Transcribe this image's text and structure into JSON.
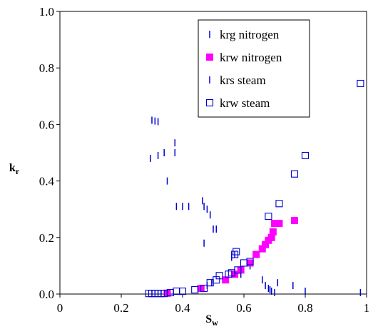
{
  "chart_data": {
    "type": "scatter",
    "title": "",
    "xlabel": "S",
    "xlabel_sub": "w",
    "ylabel": "k",
    "ylabel_sub": "r",
    "xlim": [
      0,
      1
    ],
    "ylim": [
      0,
      1
    ],
    "x_ticks": [
      0,
      0.2,
      0.4,
      0.6,
      0.8,
      1
    ],
    "x_tick_labels": [
      "0",
      "0.2",
      "0.4",
      "0.6",
      "0.8",
      "1"
    ],
    "y_ticks": [
      0,
      0.2,
      0.4,
      0.6,
      0.8,
      1
    ],
    "y_tick_labels": [
      "0.0",
      "0.2",
      "0.4",
      "0.6",
      "0.8",
      "1.0"
    ],
    "grid": false,
    "legend_position": "top-right",
    "series": [
      {
        "name": "krg nitrogen",
        "marker": "dash",
        "color": "#0000cc",
        "points": [
          [
            0.465,
            0.33
          ],
          [
            0.47,
            0.31
          ],
          [
            0.48,
            0.3
          ],
          [
            0.49,
            0.28
          ],
          [
            0.5,
            0.23
          ],
          [
            0.47,
            0.18
          ],
          [
            0.45,
            0.02
          ],
          [
            0.48,
            0.03
          ],
          [
            0.495,
            0.04
          ],
          [
            0.56,
            0.13
          ],
          [
            0.57,
            0.14
          ],
          [
            0.59,
            0.07
          ],
          [
            0.62,
            0.1
          ],
          [
            0.66,
            0.05
          ],
          [
            0.67,
            0.03
          ],
          [
            0.68,
            0.02
          ],
          [
            0.685,
            0.015
          ],
          [
            0.69,
            0.01
          ],
          [
            0.7,
            0.005
          ]
        ]
      },
      {
        "name": "krw nitrogen",
        "marker": "filled-square",
        "color": "#ff00ff",
        "points": [
          [
            0.35,
            0.003
          ],
          [
            0.46,
            0.02
          ],
          [
            0.54,
            0.05
          ],
          [
            0.57,
            0.07
          ],
          [
            0.59,
            0.085
          ],
          [
            0.62,
            0.11
          ],
          [
            0.64,
            0.14
          ],
          [
            0.66,
            0.16
          ],
          [
            0.67,
            0.175
          ],
          [
            0.68,
            0.19
          ],
          [
            0.69,
            0.2
          ],
          [
            0.695,
            0.22
          ],
          [
            0.7,
            0.25
          ],
          [
            0.715,
            0.25
          ],
          [
            0.765,
            0.26
          ]
        ]
      },
      {
        "name": "krs steam",
        "marker": "dash",
        "color": "#0000cc",
        "points": [
          [
            0.3,
            0.615
          ],
          [
            0.31,
            0.612
          ],
          [
            0.32,
            0.61
          ],
          [
            0.295,
            0.48
          ],
          [
            0.32,
            0.49
          ],
          [
            0.34,
            0.5
          ],
          [
            0.375,
            0.535
          ],
          [
            0.375,
            0.5
          ],
          [
            0.35,
            0.4
          ],
          [
            0.38,
            0.31
          ],
          [
            0.4,
            0.31
          ],
          [
            0.42,
            0.31
          ],
          [
            0.51,
            0.23
          ],
          [
            0.71,
            0.04
          ],
          [
            0.76,
            0.03
          ],
          [
            0.8,
            0.01
          ],
          [
            0.98,
            0.005
          ]
        ]
      },
      {
        "name": "krw steam",
        "marker": "open-square",
        "color": "#0000cc",
        "points": [
          [
            0.29,
            0.002
          ],
          [
            0.3,
            0.002
          ],
          [
            0.31,
            0.002
          ],
          [
            0.32,
            0.002
          ],
          [
            0.33,
            0.002
          ],
          [
            0.34,
            0.002
          ],
          [
            0.36,
            0.005
          ],
          [
            0.38,
            0.01
          ],
          [
            0.4,
            0.01
          ],
          [
            0.44,
            0.015
          ],
          [
            0.47,
            0.02
          ],
          [
            0.49,
            0.04
          ],
          [
            0.51,
            0.05
          ],
          [
            0.52,
            0.065
          ],
          [
            0.55,
            0.07
          ],
          [
            0.56,
            0.075
          ],
          [
            0.57,
            0.14
          ],
          [
            0.575,
            0.15
          ],
          [
            0.58,
            0.085
          ],
          [
            0.6,
            0.11
          ],
          [
            0.62,
            0.115
          ],
          [
            0.68,
            0.275
          ],
          [
            0.715,
            0.32
          ],
          [
            0.765,
            0.425
          ],
          [
            0.8,
            0.49
          ],
          [
            0.98,
            0.745
          ]
        ]
      }
    ]
  }
}
